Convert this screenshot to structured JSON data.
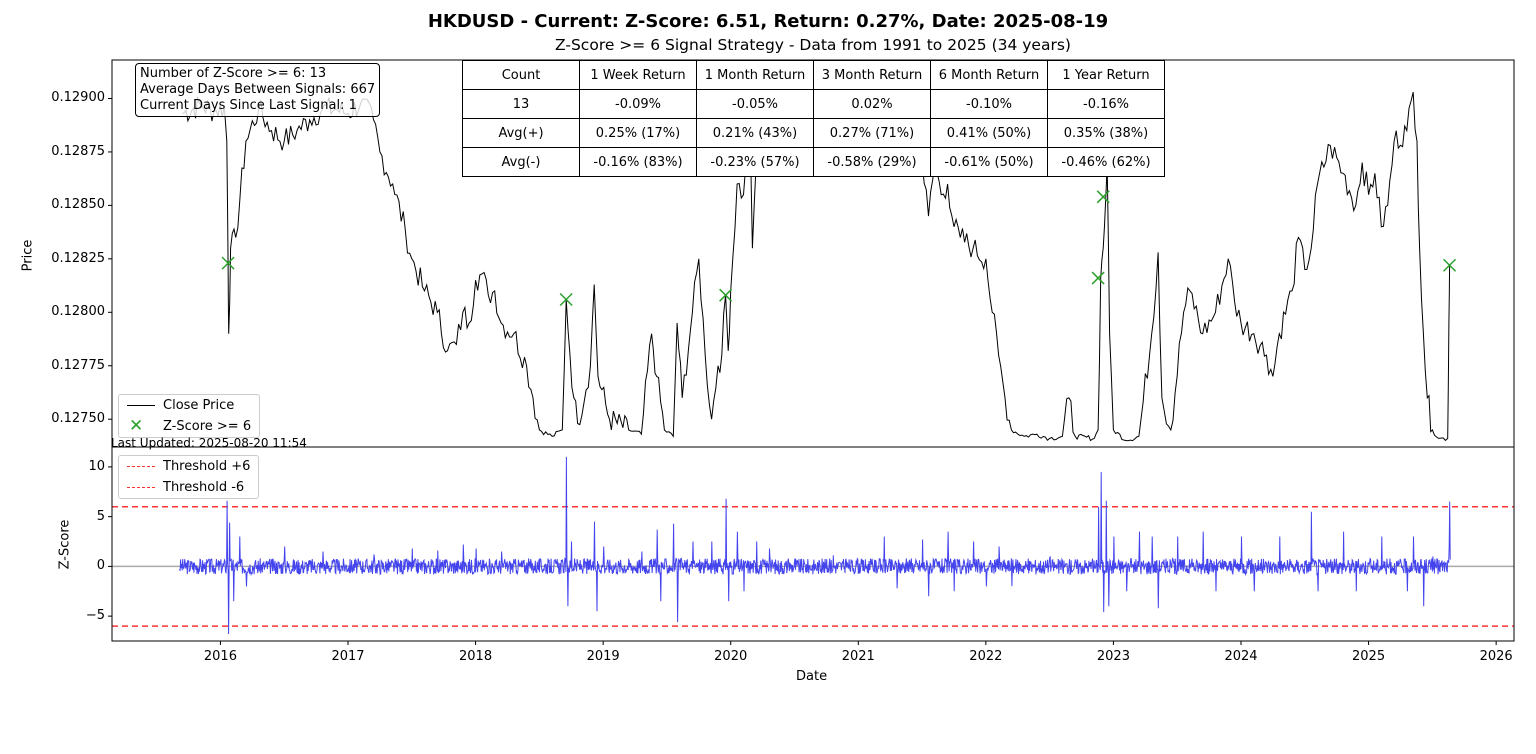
{
  "title": "HKDUSD - Current: Z-Score: 6.51, Return: 0.27%, Date: 2025-08-19",
  "subtitle": "Z-Score >= 6 Signal Strategy - Data from 1991 to 2025 (34 years)",
  "info_box": {
    "line1": "Number of Z-Score >= 6: 13",
    "line2": "Average Days Between Signals: 667",
    "line3": "Current Days Since Last Signal: 1"
  },
  "stats_table": {
    "header": [
      "Count",
      "1 Week Return",
      "1 Month Return",
      "3 Month Return",
      "6 Month Return",
      "1 Year Return"
    ],
    "rows": [
      [
        "13",
        "-0.09%",
        "-0.05%",
        "0.02%",
        "-0.10%",
        "-0.16%"
      ],
      [
        "Avg(+)",
        "0.25% (17%)",
        "0.21% (43%)",
        "0.27% (71%)",
        "0.41% (50%)",
        "0.35% (38%)"
      ],
      [
        "Avg(-)",
        "-0.16% (83%)",
        "-0.23% (57%)",
        "-0.58% (29%)",
        "-0.61% (50%)",
        "-0.46% (62%)"
      ]
    ]
  },
  "last_updated": "Last Updated: 2025-08-20 11:54",
  "colors": {
    "price_line": "#000000",
    "signal_marker": "#2ca02c",
    "zscore_line": "#4444ee",
    "threshold": "#ff3333",
    "zero_line": "#aaaaaa"
  },
  "chart_data": [
    {
      "type": "line",
      "ylabel": "Price",
      "xlabel": "",
      "xlim": [
        2015.15,
        2026.14
      ],
      "ylim": [
        12737,
        12918
      ],
      "y_scale_note": "values in units of 1e-5 USD",
      "y_ticks": [
        12750,
        12775,
        12800,
        12825,
        12850,
        12875,
        12900
      ],
      "y_tick_labels": [
        "0.12750",
        "0.12775",
        "0.12800",
        "0.12825",
        "0.12850",
        "0.12875",
        "0.12900"
      ],
      "legend": [
        "Close Price",
        "Z-Score >= 6"
      ],
      "legend_position": "lower-left",
      "series": [
        {
          "name": "Close Price",
          "points": [
            [
              2015.7,
              12893
            ],
            [
              2015.85,
              12897
            ],
            [
              2015.95,
              12894
            ],
            [
              2016.03,
              12896
            ],
            [
              2016.05,
              12880
            ],
            [
              2016.06,
              12822
            ],
            [
              2016.065,
              12790
            ],
            [
              2016.08,
              12830
            ],
            [
              2016.12,
              12835
            ],
            [
              2016.2,
              12880
            ],
            [
              2016.3,
              12895
            ],
            [
              2016.4,
              12885
            ],
            [
              2016.5,
              12880
            ],
            [
              2016.6,
              12885
            ],
            [
              2016.7,
              12890
            ],
            [
              2016.8,
              12895
            ],
            [
              2016.9,
              12895
            ],
            [
              2017.0,
              12893
            ],
            [
              2017.1,
              12898
            ],
            [
              2017.2,
              12890
            ],
            [
              2017.25,
              12875
            ],
            [
              2017.35,
              12860
            ],
            [
              2017.45,
              12838
            ],
            [
              2017.5,
              12825
            ],
            [
              2017.6,
              12810
            ],
            [
              2017.7,
              12800
            ],
            [
              2017.78,
              12782
            ],
            [
              2017.85,
              12785
            ],
            [
              2017.9,
              12800
            ],
            [
              2017.95,
              12795
            ],
            [
              2018.0,
              12815
            ],
            [
              2018.05,
              12818
            ],
            [
              2018.1,
              12808
            ],
            [
              2018.15,
              12810
            ],
            [
              2018.2,
              12795
            ],
            [
              2018.3,
              12790
            ],
            [
              2018.4,
              12775
            ],
            [
              2018.45,
              12760
            ],
            [
              2018.5,
              12745
            ],
            [
              2018.6,
              12742
            ],
            [
              2018.68,
              12745
            ],
            [
              2018.71,
              12806
            ],
            [
              2018.74,
              12780
            ],
            [
              2018.77,
              12760
            ],
            [
              2018.8,
              12748
            ],
            [
              2018.9,
              12775
            ],
            [
              2018.93,
              12813
            ],
            [
              2018.96,
              12770
            ],
            [
              2019.05,
              12750
            ],
            [
              2019.2,
              12745
            ],
            [
              2019.3,
              12743
            ],
            [
              2019.38,
              12790
            ],
            [
              2019.42,
              12770
            ],
            [
              2019.48,
              12745
            ],
            [
              2019.55,
              12742
            ],
            [
              2019.58,
              12795
            ],
            [
              2019.62,
              12760
            ],
            [
              2019.7,
              12800
            ],
            [
              2019.75,
              12825
            ],
            [
              2019.8,
              12780
            ],
            [
              2019.85,
              12750
            ],
            [
              2019.9,
              12775
            ],
            [
              2019.93,
              12780
            ],
            [
              2019.96,
              12808
            ],
            [
              2019.98,
              12782
            ],
            [
              2020.0,
              12810
            ],
            [
              2020.05,
              12860
            ],
            [
              2020.1,
              12855
            ],
            [
              2020.15,
              12885
            ],
            [
              2020.17,
              12830
            ],
            [
              2020.2,
              12870
            ],
            [
              2020.25,
              12880
            ],
            [
              2020.3,
              12900
            ],
            [
              2020.4,
              12902
            ],
            [
              2020.6,
              12900
            ],
            [
              2020.8,
              12903
            ],
            [
              2020.9,
              12897
            ],
            [
              2021.0,
              12900
            ],
            [
              2021.1,
              12895
            ],
            [
              2021.2,
              12885
            ],
            [
              2021.3,
              12880
            ],
            [
              2021.4,
              12890
            ],
            [
              2021.5,
              12870
            ],
            [
              2021.55,
              12845
            ],
            [
              2021.6,
              12870
            ],
            [
              2021.65,
              12855
            ],
            [
              2021.7,
              12860
            ],
            [
              2021.75,
              12840
            ],
            [
              2021.8,
              12835
            ],
            [
              2021.9,
              12830
            ],
            [
              2022.0,
              12825
            ],
            [
              2022.05,
              12800
            ],
            [
              2022.1,
              12780
            ],
            [
              2022.15,
              12760
            ],
            [
              2022.2,
              12745
            ],
            [
              2022.3,
              12742
            ],
            [
              2022.4,
              12743
            ],
            [
              2022.5,
              12741
            ],
            [
              2022.6,
              12742
            ],
            [
              2022.65,
              12760
            ],
            [
              2022.7,
              12742
            ],
            [
              2022.85,
              12741
            ],
            [
              2022.88,
              12745
            ],
            [
              2022.9,
              12816
            ],
            [
              2022.92,
              12830
            ],
            [
              2022.94,
              12854
            ],
            [
              2022.95,
              12871
            ],
            [
              2022.97,
              12790
            ],
            [
              2023.0,
              12745
            ],
            [
              2023.1,
              12740
            ],
            [
              2023.2,
              12742
            ],
            [
              2023.3,
              12790
            ],
            [
              2023.35,
              12828
            ],
            [
              2023.38,
              12760
            ],
            [
              2023.45,
              12745
            ],
            [
              2023.55,
              12800
            ],
            [
              2023.6,
              12810
            ],
            [
              2023.7,
              12790
            ],
            [
              2023.8,
              12800
            ],
            [
              2023.9,
              12825
            ],
            [
              2023.95,
              12805
            ],
            [
              2024.0,
              12795
            ],
            [
              2024.1,
              12790
            ],
            [
              2024.2,
              12780
            ],
            [
              2024.25,
              12770
            ],
            [
              2024.3,
              12790
            ],
            [
              2024.4,
              12810
            ],
            [
              2024.45,
              12835
            ],
            [
              2024.5,
              12820
            ],
            [
              2024.55,
              12830
            ],
            [
              2024.6,
              12860
            ],
            [
              2024.7,
              12878
            ],
            [
              2024.8,
              12865
            ],
            [
              2024.9,
              12850
            ],
            [
              2024.95,
              12870
            ],
            [
              2025.0,
              12855
            ],
            [
              2025.05,
              12865
            ],
            [
              2025.1,
              12840
            ],
            [
              2025.15,
              12850
            ],
            [
              2025.2,
              12880
            ],
            [
              2025.3,
              12885
            ],
            [
              2025.35,
              12903
            ],
            [
              2025.38,
              12880
            ],
            [
              2025.4,
              12830
            ],
            [
              2025.43,
              12790
            ],
            [
              2025.46,
              12760
            ],
            [
              2025.5,
              12745
            ],
            [
              2025.55,
              12741
            ],
            [
              2025.62,
              12741
            ],
            [
              2025.63,
              12795
            ],
            [
              2025.635,
              12822
            ]
          ]
        },
        {
          "name": "Z-Score >= 6",
          "markers": [
            [
              2016.06,
              12823
            ],
            [
              2018.71,
              12806
            ],
            [
              2019.96,
              12808
            ],
            [
              2022.88,
              12816
            ],
            [
              2022.92,
              12854
            ],
            [
              2022.94,
              12871
            ],
            [
              2025.635,
              12822
            ]
          ]
        }
      ]
    },
    {
      "type": "line",
      "ylabel": "Z-Score",
      "xlabel": "Date",
      "xlim": [
        2015.15,
        2026.14
      ],
      "ylim": [
        -7.5,
        12
      ],
      "y_ticks": [
        -5,
        0,
        5,
        10
      ],
      "y_tick_labels": [
        "−5",
        "0",
        "5",
        "10"
      ],
      "x_ticks": [
        2016,
        2017,
        2018,
        2019,
        2020,
        2021,
        2022,
        2023,
        2024,
        2025,
        2026
      ],
      "x_tick_labels": [
        "2016",
        "2017",
        "2018",
        "2019",
        "2020",
        "2021",
        "2022",
        "2023",
        "2024",
        "2025",
        "2026"
      ],
      "legend": [
        "Threshold +6",
        "Threshold -6"
      ],
      "legend_position": "upper-left",
      "thresholds": [
        6,
        -6
      ],
      "series": [
        {
          "name": "",
          "spikes": [
            [
              2015.9,
              0.6
            ],
            [
              2016.05,
              6.6
            ],
            [
              2016.06,
              -6.8
            ],
            [
              2016.07,
              4.4
            ],
            [
              2016.1,
              -3.5
            ],
            [
              2016.15,
              3.0
            ],
            [
              2016.2,
              -2.0
            ],
            [
              2016.5,
              2.0
            ],
            [
              2016.8,
              1.5
            ],
            [
              2017.2,
              1.2
            ],
            [
              2017.5,
              1.8
            ],
            [
              2017.7,
              1.6
            ],
            [
              2017.9,
              2.2
            ],
            [
              2018.0,
              1.8
            ],
            [
              2018.2,
              1.5
            ],
            [
              2018.71,
              11.0
            ],
            [
              2018.72,
              -4.0
            ],
            [
              2018.75,
              2.5
            ],
            [
              2018.93,
              4.5
            ],
            [
              2018.95,
              -4.5
            ],
            [
              2019.0,
              2.0
            ],
            [
              2019.3,
              1.5
            ],
            [
              2019.42,
              3.7
            ],
            [
              2019.45,
              -3.5
            ],
            [
              2019.55,
              4.3
            ],
            [
              2019.58,
              -5.6
            ],
            [
              2019.7,
              2.5
            ],
            [
              2019.85,
              2.5
            ],
            [
              2019.96,
              6.8
            ],
            [
              2019.98,
              -3.5
            ],
            [
              2020.05,
              3.5
            ],
            [
              2020.1,
              -2.5
            ],
            [
              2020.2,
              2.5
            ],
            [
              2020.3,
              1.8
            ],
            [
              2020.5,
              0.8
            ],
            [
              2020.8,
              1.1
            ],
            [
              2021.2,
              3.0
            ],
            [
              2021.3,
              -2.2
            ],
            [
              2021.5,
              2.7
            ],
            [
              2021.55,
              -3.0
            ],
            [
              2021.7,
              3.5
            ],
            [
              2021.75,
              -2.5
            ],
            [
              2021.9,
              2.5
            ],
            [
              2022.0,
              -2.0
            ],
            [
              2022.1,
              2.0
            ],
            [
              2022.2,
              -2.0
            ],
            [
              2022.5,
              1.0
            ],
            [
              2022.88,
              6.0
            ],
            [
              2022.9,
              9.5
            ],
            [
              2022.92,
              -4.6
            ],
            [
              2022.94,
              6.6
            ],
            [
              2022.96,
              -4.0
            ],
            [
              2023.0,
              3.0
            ],
            [
              2023.1,
              -2.5
            ],
            [
              2023.2,
              3.5
            ],
            [
              2023.3,
              3.0
            ],
            [
              2023.35,
              -4.2
            ],
            [
              2023.5,
              3.0
            ],
            [
              2023.7,
              3.5
            ],
            [
              2023.8,
              -2.5
            ],
            [
              2024.0,
              3.0
            ],
            [
              2024.1,
              -2.5
            ],
            [
              2024.3,
              3.0
            ],
            [
              2024.55,
              5.5
            ],
            [
              2024.6,
              -2.5
            ],
            [
              2024.8,
              3.5
            ],
            [
              2024.9,
              -2.5
            ],
            [
              2025.1,
              3.0
            ],
            [
              2025.3,
              -2.5
            ],
            [
              2025.35,
              3.0
            ],
            [
              2025.43,
              -4.0
            ],
            [
              2025.5,
              1.0
            ],
            [
              2025.63,
              2.0
            ],
            [
              2025.635,
              6.51
            ]
          ]
        }
      ]
    }
  ]
}
